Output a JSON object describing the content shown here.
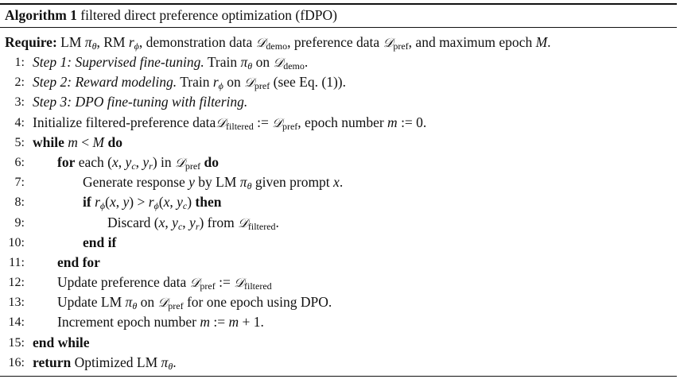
{
  "algorithm": {
    "label": "Algorithm 1",
    "title": "filtered direct preference optimization (fDPO)",
    "require_keyword": "Require:",
    "require_text": "LM πθ, RM rϕ, demonstration data 𝒟demo, preference data 𝒟pref, and maximum epoch M.",
    "lines": [
      {
        "num": "1:",
        "text": "Step 1: Supervised fine-tuning. Train πθ on 𝒟demo."
      },
      {
        "num": "2:",
        "text": "Step 2: Reward modeling. Train rϕ on 𝒟pref (see Eq. (1))."
      },
      {
        "num": "3:",
        "text": "Step 3: DPO fine-tuning with filtering."
      },
      {
        "num": "4:",
        "text": "Initialize filtered-preference data𝒟filtered := 𝒟pref, epoch number m := 0."
      },
      {
        "num": "5:",
        "text": "while m < M do"
      },
      {
        "num": "6:",
        "text": "for each (x, yc, yr) in 𝒟pref do"
      },
      {
        "num": "7:",
        "text": "Generate response y by LM πθ given prompt x."
      },
      {
        "num": "8:",
        "text": "if rϕ(x, y) > rϕ(x, yc) then"
      },
      {
        "num": "9:",
        "text": "Discard (x, yc, yr) from 𝒟filtered."
      },
      {
        "num": "10:",
        "text": "end if"
      },
      {
        "num": "11:",
        "text": "end for"
      },
      {
        "num": "12:",
        "text": "Update preference data 𝒟pref := 𝒟filtered"
      },
      {
        "num": "13:",
        "text": "Update LM πθ on 𝒟pref for one epoch using DPO."
      },
      {
        "num": "14:",
        "text": "Increment epoch number m := m + 1."
      },
      {
        "num": "15:",
        "text": "end while"
      },
      {
        "num": "16:",
        "text": "return Optimized LM πθ."
      }
    ]
  }
}
